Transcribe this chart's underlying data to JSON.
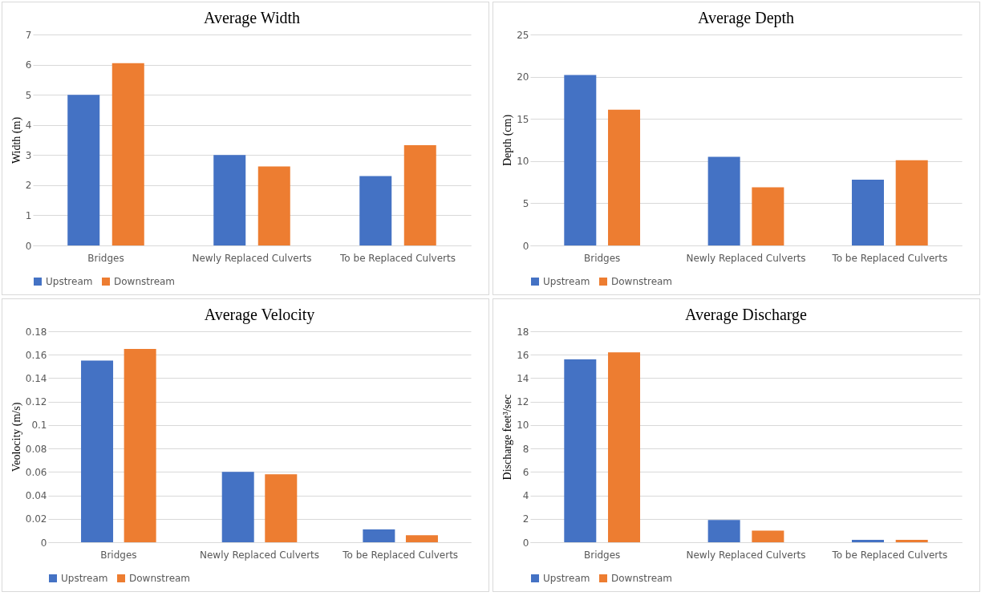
{
  "chart_data": [
    {
      "type": "bar",
      "title": "Average  Width",
      "ylabel": "Width (m)",
      "categories": [
        "Bridges",
        "Newly Replaced Culverts",
        "To be Replaced Culverts"
      ],
      "ylim": [
        0,
        7
      ],
      "yticks": [
        0,
        1,
        2,
        3,
        4,
        5,
        6,
        7
      ],
      "grid": "y",
      "legend": "bottom",
      "series": [
        {
          "name": "Upstream",
          "color": "#4472c4",
          "values": [
            5.0,
            3.0,
            2.3
          ]
        },
        {
          "name": "Downstream",
          "color": "#ed7d31",
          "values": [
            6.05,
            2.62,
            3.33
          ]
        }
      ]
    },
    {
      "type": "bar",
      "title": "Average  Depth",
      "ylabel": "Depth  (cm)",
      "categories": [
        "Bridges",
        "Newly Replaced Culverts",
        "To be Replaced Culverts"
      ],
      "ylim": [
        0,
        25
      ],
      "yticks": [
        0,
        5,
        10,
        15,
        20,
        25
      ],
      "grid": "y",
      "legend": "bottom",
      "series": [
        {
          "name": "Upstream",
          "color": "#4472c4",
          "values": [
            20.2,
            10.5,
            7.8
          ]
        },
        {
          "name": "Downstream",
          "color": "#ed7d31",
          "values": [
            16.1,
            6.9,
            10.1
          ]
        }
      ]
    },
    {
      "type": "bar",
      "title": "Average  Velocity",
      "ylabel": "Veolocity (m/s)",
      "categories": [
        "Bridges",
        "Newly Replaced Culverts",
        "To be Replaced Culverts"
      ],
      "ylim": [
        0,
        0.18
      ],
      "yticks": [
        0,
        0.02,
        0.04,
        0.06,
        0.08,
        0.1,
        0.12,
        0.14,
        0.16,
        0.18
      ],
      "grid": "y",
      "legend": "bottom",
      "series": [
        {
          "name": "Upstream",
          "color": "#4472c4",
          "values": [
            0.155,
            0.06,
            0.011
          ]
        },
        {
          "name": "Downstream",
          "color": "#ed7d31",
          "values": [
            0.165,
            0.058,
            0.006
          ]
        }
      ]
    },
    {
      "type": "bar",
      "title": "Average  Discharge",
      "ylabel": "Discharge feet³/sec",
      "categories": [
        "Bridges",
        "Newly Replaced Culverts",
        "To be Replaced Culverts"
      ],
      "ylim": [
        0,
        18
      ],
      "yticks": [
        0,
        2,
        4,
        6,
        8,
        10,
        12,
        14,
        16,
        18
      ],
      "grid": "y",
      "legend": "bottom",
      "series": [
        {
          "name": "Upstream",
          "color": "#4472c4",
          "values": [
            15.6,
            1.9,
            0.2
          ]
        },
        {
          "name": "Downstream",
          "color": "#ed7d31",
          "values": [
            16.2,
            1.0,
            0.2
          ]
        }
      ]
    }
  ]
}
